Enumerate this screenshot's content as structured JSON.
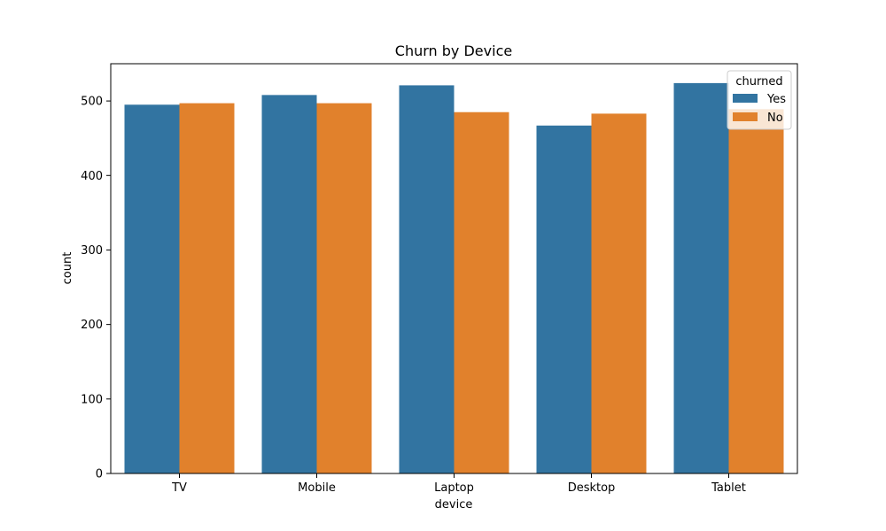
{
  "chart_data": {
    "type": "bar",
    "title": "Churn by Device",
    "xlabel": "device",
    "ylabel": "count",
    "categories": [
      "TV",
      "Mobile",
      "Laptop",
      "Desktop",
      "Tablet"
    ],
    "series": [
      {
        "name": "Yes",
        "values": [
          495,
          508,
          521,
          467,
          524
        ],
        "color": "#3274a1"
      },
      {
        "name": "No",
        "values": [
          497,
          497,
          485,
          483,
          489
        ],
        "color": "#e1812c"
      }
    ],
    "ylim": [
      0,
      550
    ],
    "yticks": [
      0,
      100,
      200,
      300,
      400,
      500
    ],
    "grid": false,
    "legend": {
      "title": "churned",
      "placement": "top-right"
    }
  }
}
